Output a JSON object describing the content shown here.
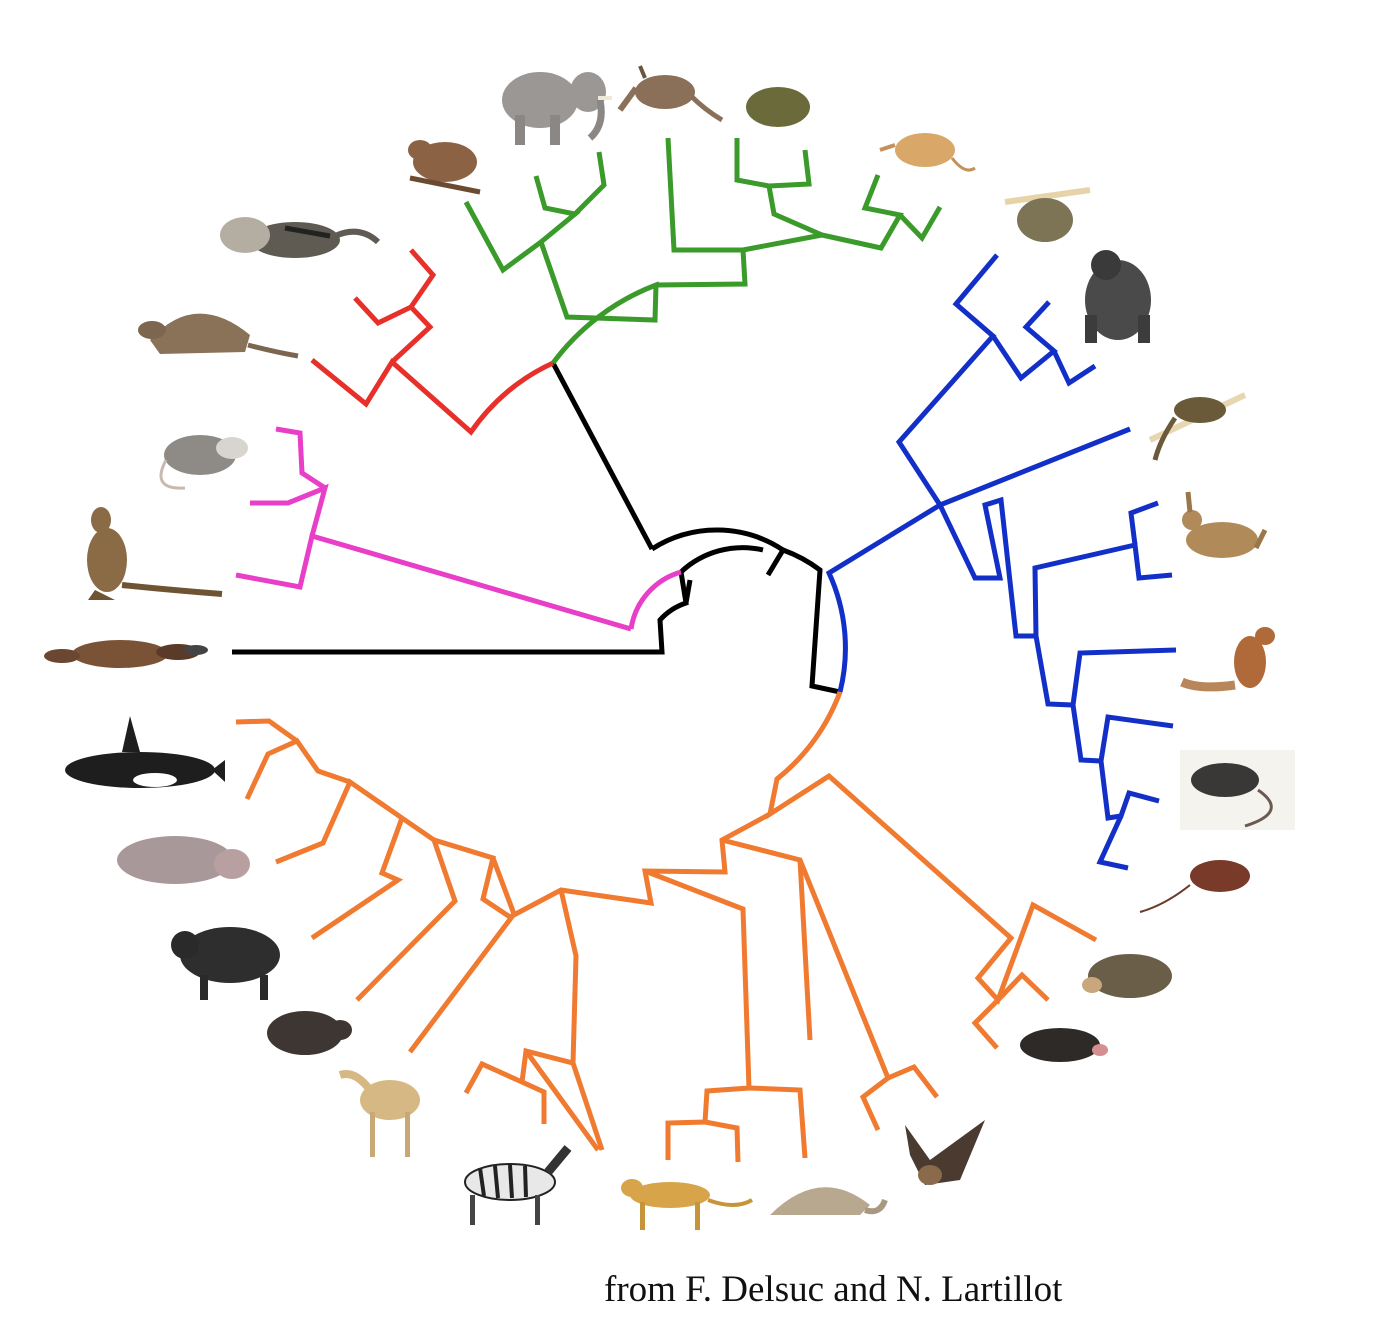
{
  "credit": "from F. Delsuc and N. Lartillot",
  "clade_colors": {
    "root": "#000000",
    "marsupials": "#e83ec8",
    "xenarthra": "#e8302a",
    "afrotheria": "#3a9a2a",
    "euarchontoglires": "#1230c8",
    "laurasiatheria": "#f07a30"
  },
  "taxa": [
    {
      "id": "platypus",
      "icon": "platypus-icon"
    },
    {
      "id": "kangaroo",
      "icon": "kangaroo-icon"
    },
    {
      "id": "opossum",
      "icon": "opossum-icon"
    },
    {
      "id": "armadillo",
      "icon": "armadillo-icon"
    },
    {
      "id": "anteater",
      "icon": "anteater-icon"
    },
    {
      "id": "hyrax",
      "icon": "hyrax-icon"
    },
    {
      "id": "elephant",
      "icon": "elephant-icon"
    },
    {
      "id": "aardvark",
      "icon": "aardvark-icon"
    },
    {
      "id": "golden-mole",
      "icon": "golden-mole-icon"
    },
    {
      "id": "elephant-shrew",
      "icon": "elephant-shrew-icon"
    },
    {
      "id": "sloth",
      "icon": "sloth-icon"
    },
    {
      "id": "gorilla",
      "icon": "gorilla-icon"
    },
    {
      "id": "treeshrew",
      "icon": "treeshrew-icon"
    },
    {
      "id": "hare",
      "icon": "hare-icon"
    },
    {
      "id": "squirrel",
      "icon": "squirrel-icon"
    },
    {
      "id": "rat",
      "icon": "rat-icon"
    },
    {
      "id": "mouse",
      "icon": "mouse-icon"
    },
    {
      "id": "hedgehog",
      "icon": "hedgehog-icon"
    },
    {
      "id": "mole",
      "icon": "mole-icon"
    },
    {
      "id": "bat",
      "icon": "bat-icon"
    },
    {
      "id": "pangolin",
      "icon": "pangolin-icon"
    },
    {
      "id": "leopard",
      "icon": "leopard-icon"
    },
    {
      "id": "zebra",
      "icon": "zebra-icon"
    },
    {
      "id": "camel",
      "icon": "camel-icon"
    },
    {
      "id": "boar",
      "icon": "boar-icon"
    },
    {
      "id": "buffalo",
      "icon": "buffalo-icon"
    },
    {
      "id": "hippo",
      "icon": "hippo-icon"
    },
    {
      "id": "orca",
      "icon": "orca-icon"
    }
  ]
}
